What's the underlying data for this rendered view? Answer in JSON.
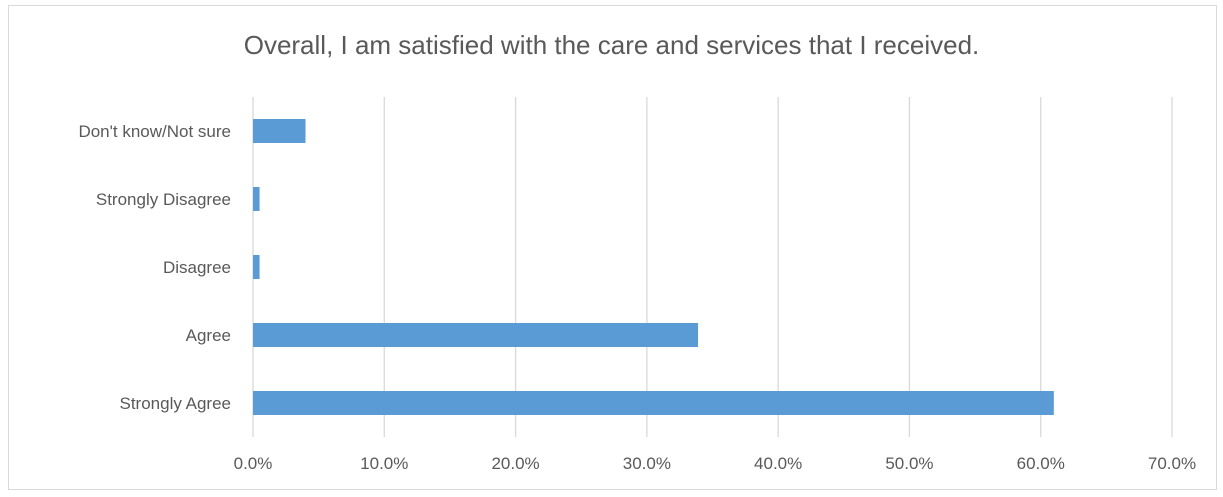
{
  "chart_data": {
    "type": "bar",
    "orientation": "horizontal",
    "title": "Overall, I am satisfied with the care and services that I received.",
    "categories": [
      "Don't know/Not sure",
      "Strongly Disagree",
      "Disagree",
      "Agree",
      "Strongly Agree"
    ],
    "values": [
      4.0,
      0.5,
      0.5,
      33.9,
      61.0
    ],
    "xlim": [
      0,
      70
    ],
    "xticks": [
      "0.0%",
      "10.0%",
      "20.0%",
      "30.0%",
      "40.0%",
      "50.0%",
      "60.0%",
      "70.0%"
    ],
    "grid": true,
    "legend": "none",
    "bar_color": "#5b9bd5",
    "grid_color": "#d9d9d9"
  }
}
